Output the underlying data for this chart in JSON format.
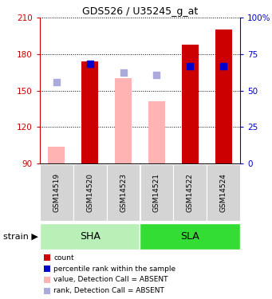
{
  "title": "GDS526 / U35245_g_at",
  "samples": [
    "GSM14519",
    "GSM14520",
    "GSM14523",
    "GSM14521",
    "GSM14522",
    "GSM14524"
  ],
  "groups": [
    "SHA",
    "SHA",
    "SHA",
    "SLA",
    "SLA",
    "SLA"
  ],
  "group_labels": [
    "SHA",
    "SLA"
  ],
  "group_colors": [
    "#b8f0b8",
    "#33dd33"
  ],
  "ylim": [
    90,
    210
  ],
  "yticks": [
    90,
    120,
    150,
    180,
    210
  ],
  "right_yticks": [
    0,
    25,
    50,
    75,
    100
  ],
  "value_bars": {
    "GSM14519": {
      "value": 104,
      "absent": true
    },
    "GSM14520": {
      "value": 174,
      "absent": false
    },
    "GSM14523": {
      "value": 160,
      "absent": true
    },
    "GSM14521": {
      "value": 141,
      "absent": true
    },
    "GSM14522": {
      "value": 188,
      "absent": false
    },
    "GSM14524": {
      "value": 200,
      "absent": false
    }
  },
  "rank_dots": {
    "GSM14519": {
      "rank": 157,
      "absent": true
    },
    "GSM14520": {
      "rank": 172,
      "absent": false
    },
    "GSM14523": {
      "rank": 165,
      "absent": true
    },
    "GSM14521": {
      "rank": 163,
      "absent": true
    },
    "GSM14522": {
      "rank": 170,
      "absent": false
    },
    "GSM14524": {
      "rank": 170,
      "absent": false
    }
  },
  "bar_color_present": "#cc0000",
  "bar_color_absent": "#ffb3b3",
  "dot_color_present": "#0000cc",
  "dot_color_absent": "#aaaadd",
  "bar_width": 0.5,
  "baseline": 90,
  "ylabel_color_left": "#cc0000",
  "ylabel_color_right": "#0000cc",
  "legend_items": [
    {
      "label": "count",
      "color": "#cc0000"
    },
    {
      "label": "percentile rank within the sample",
      "color": "#0000cc"
    },
    {
      "label": "value, Detection Call = ABSENT",
      "color": "#ffb3b3"
    },
    {
      "label": "rank, Detection Call = ABSENT",
      "color": "#aaaadd"
    }
  ]
}
